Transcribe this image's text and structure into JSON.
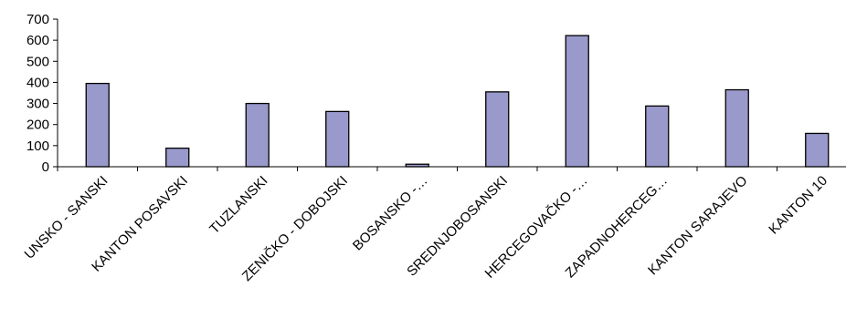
{
  "chart_data": {
    "type": "bar",
    "categories": [
      "UNSKO - SANSKI",
      "KANTON POSAVSKI",
      "TUZLANSKI",
      "ZENIČKO - DOBOJSKI",
      "BOSANSKO -…",
      "SREDNJOBOSANSKI",
      "HERCEGOVAČKO -…",
      "ZAPADNOHERCEG…",
      "KANTON SARAJEVO",
      "KANTON 10"
    ],
    "values": [
      395,
      88,
      300,
      262,
      12,
      355,
      622,
      288,
      365,
      158
    ],
    "ylim": [
      0,
      700
    ],
    "yticks": [
      "0",
      "100",
      "200",
      "300",
      "400",
      "500",
      "600",
      "700"
    ],
    "title": "",
    "xlabel": "",
    "ylabel": "",
    "grid": false,
    "legend": "none",
    "bar_color": "#9999CC",
    "bar_stroke": "#000000"
  }
}
